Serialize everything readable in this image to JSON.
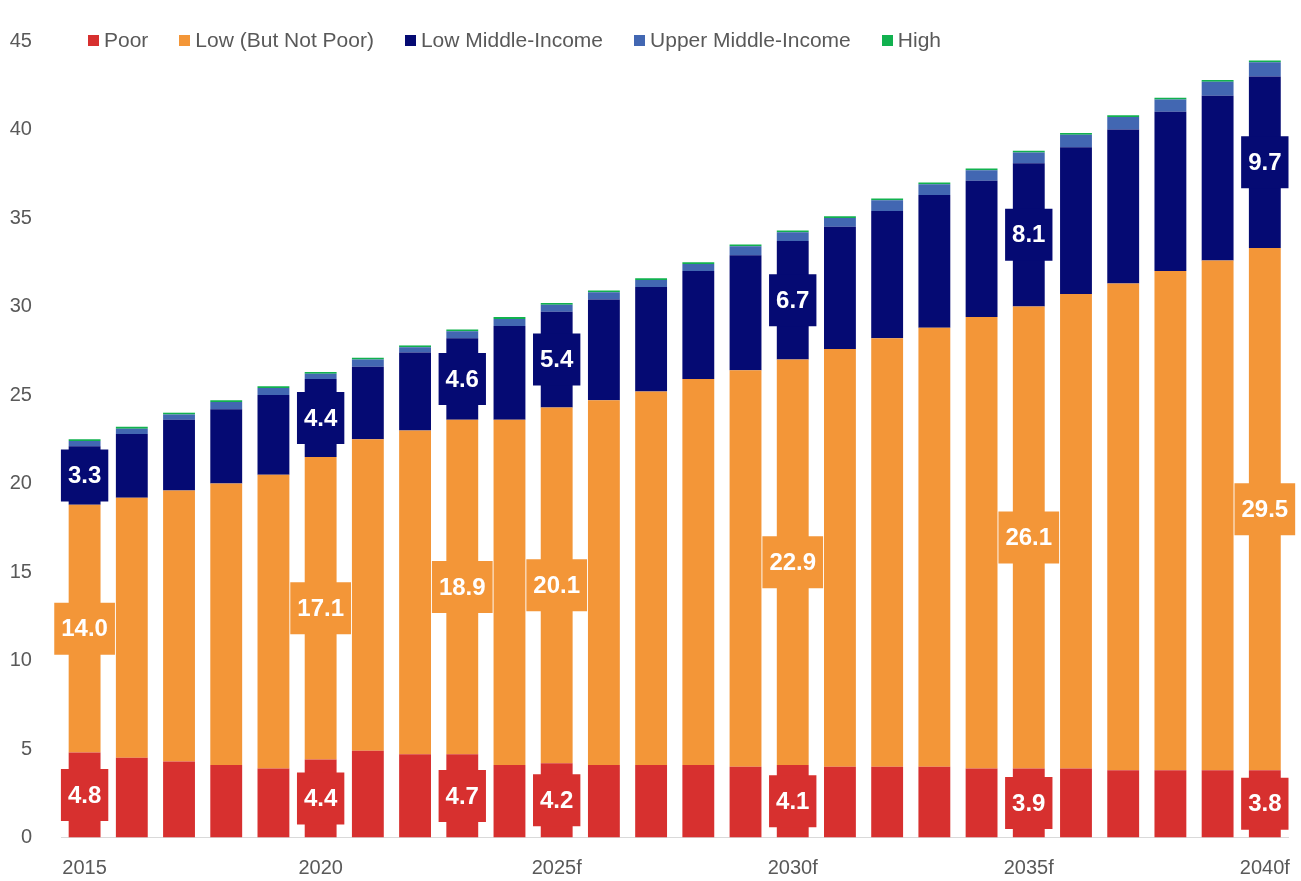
{
  "chart_data": {
    "type": "bar",
    "stacked": true,
    "categories": [
      "2015",
      null,
      null,
      null,
      null,
      "2020",
      null,
      null,
      null,
      null,
      "2025f",
      null,
      null,
      null,
      null,
      "2030f",
      null,
      null,
      null,
      null,
      "2035f",
      null,
      null,
      null,
      null,
      "2040f"
    ],
    "series": [
      {
        "name": "Poor",
        "color": "#d7302f",
        "values": [
          4.8,
          4.5,
          4.3,
          4.1,
          3.9,
          4.4,
          4.9,
          4.7,
          4.7,
          4.1,
          4.2,
          4.1,
          4.1,
          4.1,
          4.0,
          4.1,
          4.0,
          4.0,
          4.0,
          3.9,
          3.9,
          3.9,
          3.8,
          3.8,
          3.8,
          3.8
        ],
        "value_labels": [
          "4.8",
          null,
          null,
          null,
          null,
          "4.4",
          null,
          null,
          "4.7",
          null,
          "4.2",
          null,
          null,
          null,
          null,
          "4.1",
          null,
          null,
          null,
          null,
          "3.9",
          null,
          null,
          null,
          null,
          "3.8"
        ]
      },
      {
        "name": "Low (But Not Poor)",
        "color": "#f39638",
        "values": [
          14.0,
          14.7,
          15.3,
          15.9,
          16.6,
          17.1,
          17.6,
          18.3,
          18.9,
          19.5,
          20.1,
          20.6,
          21.1,
          21.8,
          22.4,
          22.9,
          23.6,
          24.2,
          24.8,
          25.5,
          26.1,
          26.8,
          27.5,
          28.2,
          28.8,
          29.5
        ],
        "value_labels": [
          "14.0",
          null,
          null,
          null,
          null,
          "17.1",
          null,
          null,
          "18.9",
          null,
          "20.1",
          null,
          null,
          null,
          null,
          "22.9",
          null,
          null,
          null,
          null,
          "26.1",
          null,
          null,
          null,
          null,
          "29.5"
        ]
      },
      {
        "name": "Low Middle-Income",
        "color": "#050a73",
        "values": [
          3.3,
          3.6,
          4.0,
          4.2,
          4.5,
          4.4,
          4.1,
          4.4,
          4.6,
          5.3,
          5.4,
          5.7,
          5.9,
          6.1,
          6.5,
          6.7,
          6.9,
          7.2,
          7.5,
          7.7,
          8.1,
          8.3,
          8.7,
          9.0,
          9.3,
          9.7
        ],
        "value_labels": [
          "3.3",
          null,
          null,
          null,
          null,
          "4.4",
          null,
          null,
          "4.6",
          null,
          "5.4",
          null,
          null,
          null,
          null,
          "6.7",
          null,
          null,
          null,
          null,
          "8.1",
          null,
          null,
          null,
          null,
          "9.7"
        ]
      },
      {
        "name": "Upper Middle-Income",
        "color": "#4267b2",
        "values": [
          0.3,
          0.3,
          0.3,
          0.4,
          0.4,
          0.3,
          0.4,
          0.3,
          0.4,
          0.4,
          0.4,
          0.4,
          0.4,
          0.4,
          0.5,
          0.5,
          0.5,
          0.6,
          0.6,
          0.6,
          0.6,
          0.7,
          0.7,
          0.7,
          0.8,
          0.8
        ]
      },
      {
        "name": "High",
        "color": "#11b14f",
        "values": [
          0.1,
          0.1,
          0.1,
          0.1,
          0.1,
          0.1,
          0.1,
          0.1,
          0.1,
          0.1,
          0.1,
          0.1,
          0.1,
          0.1,
          0.1,
          0.1,
          0.1,
          0.1,
          0.1,
          0.1,
          0.1,
          0.1,
          0.1,
          0.1,
          0.1,
          0.1
        ]
      }
    ],
    "ylim": [
      0,
      45
    ],
    "yticks": [
      0,
      5,
      10,
      15,
      20,
      25,
      30,
      35,
      40,
      45
    ],
    "legend": "top left"
  }
}
